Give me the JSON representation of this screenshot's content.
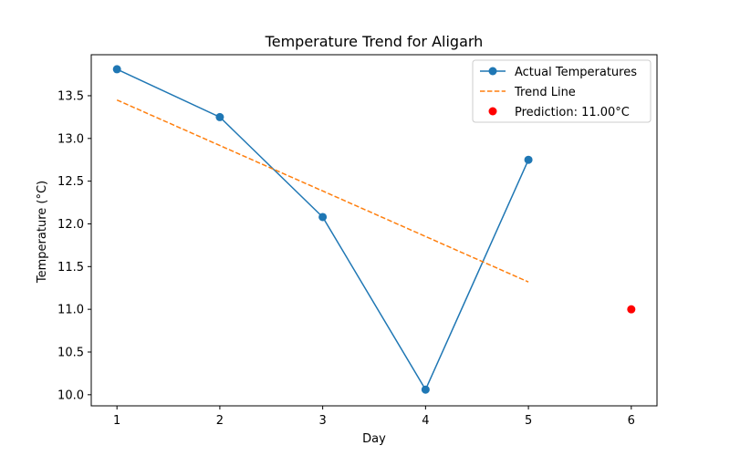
{
  "chart_data": {
    "type": "line",
    "title": "Temperature Trend for Aligarh",
    "xlabel": "Day",
    "ylabel": "Temperature (°C)",
    "xlim": [
      0.75,
      6.25
    ],
    "ylim": [
      9.87,
      13.98
    ],
    "xticks": [
      1,
      2,
      3,
      4,
      5,
      6
    ],
    "yticks": [
      10.0,
      10.5,
      11.0,
      11.5,
      12.0,
      12.5,
      13.0,
      13.5
    ],
    "grid": false,
    "legend_position": "top-right",
    "series": [
      {
        "name": "Actual Temperatures",
        "kind": "line-marker",
        "color": "#1f77b4",
        "x": [
          1,
          2,
          3,
          4,
          5
        ],
        "y": [
          13.81,
          13.25,
          12.08,
          10.06,
          12.75
        ]
      },
      {
        "name": "Trend Line",
        "kind": "dashed-line",
        "color": "#ff7f0e",
        "x": [
          1,
          5
        ],
        "y": [
          13.45,
          11.32
        ]
      },
      {
        "name": "Prediction: 11.00°C",
        "kind": "scatter",
        "color": "#ff0000",
        "x": [
          6
        ],
        "y": [
          11.0
        ]
      }
    ]
  }
}
